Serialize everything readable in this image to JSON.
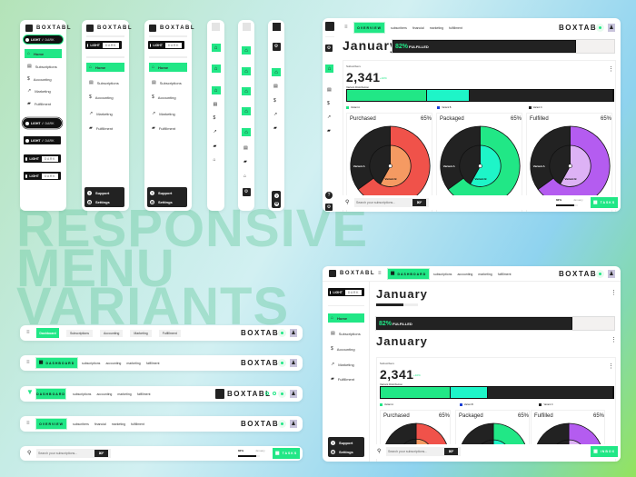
{
  "brand": "BOXTABL",
  "headline": [
    "RESPONSIVE",
    "MENU",
    "VARIANTS"
  ],
  "theme_toggle": {
    "light": "LIGHT",
    "sep": "/",
    "dark": "DARK"
  },
  "sidebar": {
    "items": [
      {
        "label": "Home",
        "icon": "home-icon",
        "active": true
      },
      {
        "label": "Subscriptions",
        "icon": "card-icon"
      },
      {
        "label": "Accounting",
        "icon": "dollar-icon"
      },
      {
        "label": "Marketing",
        "icon": "trend-icon"
      },
      {
        "label": "Fulfillment",
        "icon": "truck-icon"
      }
    ],
    "support": "Support",
    "settings": "Settings"
  },
  "topnav_variants": [
    {
      "active": "Dashboard",
      "links": [
        "Subscriptions",
        "Accounting",
        "Marketing",
        "Fulfillment"
      ]
    },
    {
      "active": "DASHBOARD",
      "links": [
        "subscriptions",
        "accounting",
        "marketing",
        "fulfillment"
      ]
    },
    {
      "active": "DASHBOARD",
      "links": [
        "subscriptions",
        "accounting",
        "marketing",
        "fulfillment"
      ]
    },
    {
      "active": "OVERVIEW",
      "links": [
        "subscribers",
        "financial",
        "marketing",
        "fulfillment"
      ]
    }
  ],
  "bottombar": {
    "search_placeholder": "Search your subscriptions...",
    "shortcut": "⌘F",
    "progress_label": "82%",
    "progress_value": 82,
    "month": "January",
    "tasks": "TASKS",
    "inbox": "INBOX"
  },
  "dashboard": {
    "month": "January",
    "fulfilled_percent": "82%",
    "fulfilled_label": "FULFILLED",
    "fulfilled_value": 82,
    "subscribers_label": "Subscribers",
    "subscribers_value": "2,341",
    "subscribers_change": "+10%",
    "distribution_label": "Variant Distribution",
    "distribution": [
      {
        "name": "Variant A",
        "value": 30,
        "color": "#21e786"
      },
      {
        "name": "Variant B",
        "value": 16,
        "color": "#1ef5c8",
        "legend_color": "#1a3fd6"
      },
      {
        "name": "Variant C",
        "value": 54,
        "color": "#222222"
      }
    ],
    "donuts": [
      {
        "title": "Purchased",
        "percent": "65%",
        "value": 65,
        "inner_value": 58,
        "outer_color": "#f0524a",
        "inner_color": "#f59a62",
        "label_a": "Variant A",
        "label_b": "Variant B"
      },
      {
        "title": "Packaged",
        "percent": "65%",
        "value": 65,
        "inner_value": 58,
        "outer_color": "#21e786",
        "inner_color": "#1ef5c8",
        "label_a": "Variant A",
        "label_b": "Variant B"
      },
      {
        "title": "Fulfilled",
        "percent": "65%",
        "value": 65,
        "inner_value": 58,
        "outer_color": "#b45cf0",
        "inner_color": "#ddb2f5",
        "label_a": "Variant A",
        "label_b": "Variant B"
      }
    ]
  },
  "colors": {
    "accent": "#21e786",
    "dark": "#222222"
  }
}
